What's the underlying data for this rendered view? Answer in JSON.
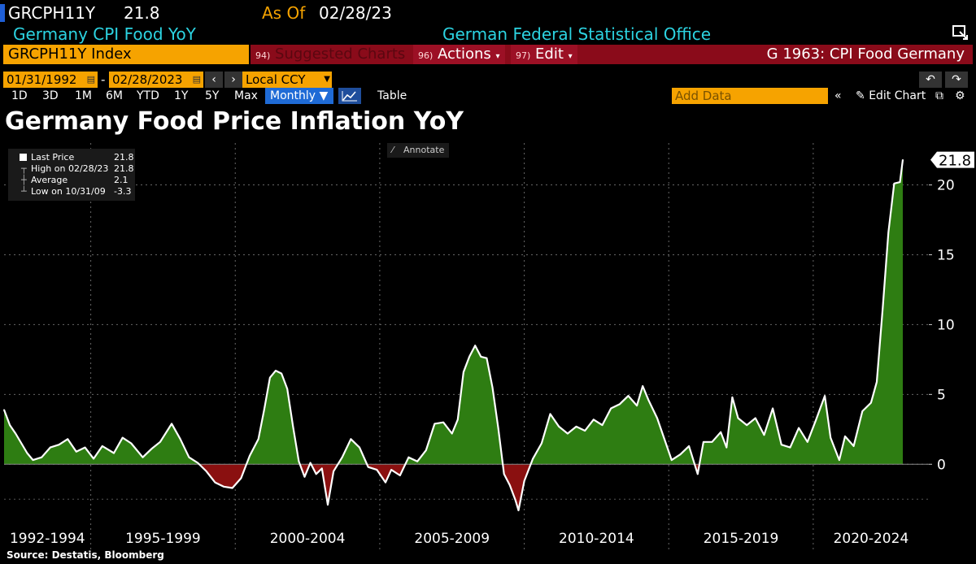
{
  "header": {
    "ticker": "GRCPH11Y",
    "last_value": "21.8",
    "as_of_label": "As Of",
    "as_of_date": "02/28/23",
    "description": "Germany CPI Food YoY",
    "source": "German Federal Statistical Office"
  },
  "toolbar": {
    "security": "GRCPH11Y Index",
    "suggested_num": "94)",
    "suggested_label": "Suggested Charts",
    "actions_num": "96)",
    "actions_label": "Actions",
    "edit_num": "97)",
    "edit_label": "Edit",
    "chart_name": "G 1963: CPI Food Germany",
    "start_date": "01/31/1992",
    "end_date": "02/28/2023",
    "date_sep": "-",
    "currency": "Local CCY",
    "periods": [
      "1D",
      "3D",
      "1M",
      "6M",
      "YTD",
      "1Y",
      "5Y",
      "Max"
    ],
    "frequency": "Monthly",
    "table_label": "Table",
    "add_data_placeholder": "Add Data",
    "edit_chart_label": "Edit Chart"
  },
  "legend": {
    "last_price_label": "Last Price",
    "last_price_value": "21.8",
    "high_label": "High on 02/28/23",
    "high_value": "21.8",
    "average_label": "Average",
    "average_value": "2.1",
    "low_label": "Low on 10/31/09",
    "low_value": "-3.3",
    "annotate_label": "Annotate"
  },
  "colors": {
    "positive_fill": "#2e7d12",
    "negative_fill": "#8a1010",
    "line": "#ffffff",
    "accent_orange": "#f6a300",
    "accent_cyan": "#2cd3e1"
  },
  "footer": {
    "source": "Source: Destatis, Bloomberg"
  },
  "chart_data": {
    "type": "area",
    "title": "Germany Food Price Inflation YoY",
    "xlabel": "",
    "ylabel": "",
    "ylim": [
      -4,
      23
    ],
    "yticks": [
      0,
      5,
      10,
      15,
      20
    ],
    "last_value_label": "21.8",
    "x_category_labels": [
      "1992-1994",
      "1995-1999",
      "2000-2004",
      "2005-2009",
      "2010-2014",
      "2015-2019",
      "2020-2024"
    ],
    "x_category_spans": [
      [
        1992,
        1995
      ],
      [
        1995,
        2000
      ],
      [
        2000,
        2005
      ],
      [
        2005,
        2010
      ],
      [
        2010,
        2015
      ],
      [
        2015,
        2020
      ],
      [
        2020,
        2024
      ]
    ],
    "xlim": [
      1992,
      2024
    ],
    "series": [
      {
        "name": "GRCPH11Y Index",
        "points": [
          [
            1992.0,
            3.9
          ],
          [
            1992.2,
            2.8
          ],
          [
            1992.4,
            2.2
          ],
          [
            1992.6,
            1.5
          ],
          [
            1992.8,
            0.8
          ],
          [
            1993.0,
            0.3
          ],
          [
            1993.3,
            0.5
          ],
          [
            1993.6,
            1.2
          ],
          [
            1993.9,
            1.4
          ],
          [
            1994.2,
            1.8
          ],
          [
            1994.5,
            0.9
          ],
          [
            1994.8,
            1.2
          ],
          [
            1995.1,
            0.4
          ],
          [
            1995.4,
            1.3
          ],
          [
            1995.8,
            0.8
          ],
          [
            1996.1,
            1.9
          ],
          [
            1996.4,
            1.5
          ],
          [
            1996.8,
            0.5
          ],
          [
            1997.1,
            1.1
          ],
          [
            1997.4,
            1.6
          ],
          [
            1997.8,
            2.9
          ],
          [
            1998.1,
            1.8
          ],
          [
            1998.4,
            0.5
          ],
          [
            1998.7,
            0.1
          ],
          [
            1999.0,
            -0.5
          ],
          [
            1999.3,
            -1.3
          ],
          [
            1999.6,
            -1.6
          ],
          [
            1999.9,
            -1.7
          ],
          [
            2000.2,
            -1.0
          ],
          [
            2000.5,
            0.6
          ],
          [
            2000.8,
            1.8
          ],
          [
            2001.0,
            3.9
          ],
          [
            2001.2,
            6.2
          ],
          [
            2001.4,
            6.7
          ],
          [
            2001.6,
            6.5
          ],
          [
            2001.8,
            5.4
          ],
          [
            2002.0,
            2.7
          ],
          [
            2002.2,
            0.2
          ],
          [
            2002.4,
            -0.9
          ],
          [
            2002.6,
            0.1
          ],
          [
            2002.8,
            -0.7
          ],
          [
            2003.0,
            -0.3
          ],
          [
            2003.2,
            -2.9
          ],
          [
            2003.4,
            -0.5
          ],
          [
            2003.7,
            0.5
          ],
          [
            2004.0,
            1.8
          ],
          [
            2004.3,
            1.2
          ],
          [
            2004.6,
            -0.2
          ],
          [
            2004.9,
            -0.4
          ],
          [
            2005.2,
            -1.3
          ],
          [
            2005.4,
            -0.4
          ],
          [
            2005.7,
            -0.8
          ],
          [
            2006.0,
            0.5
          ],
          [
            2006.3,
            0.2
          ],
          [
            2006.6,
            1.0
          ],
          [
            2006.9,
            2.9
          ],
          [
            2007.2,
            3.0
          ],
          [
            2007.5,
            2.2
          ],
          [
            2007.7,
            3.2
          ],
          [
            2007.9,
            6.6
          ],
          [
            2008.1,
            7.7
          ],
          [
            2008.3,
            8.5
          ],
          [
            2008.5,
            7.7
          ],
          [
            2008.7,
            7.6
          ],
          [
            2008.9,
            5.5
          ],
          [
            2009.1,
            2.6
          ],
          [
            2009.3,
            -0.7
          ],
          [
            2009.5,
            -1.5
          ],
          [
            2009.7,
            -2.6
          ],
          [
            2009.8,
            -3.3
          ],
          [
            2010.0,
            -1.2
          ],
          [
            2010.3,
            0.4
          ],
          [
            2010.6,
            1.5
          ],
          [
            2010.9,
            3.6
          ],
          [
            2011.2,
            2.7
          ],
          [
            2011.5,
            2.2
          ],
          [
            2011.8,
            2.7
          ],
          [
            2012.1,
            2.4
          ],
          [
            2012.4,
            3.2
          ],
          [
            2012.7,
            2.8
          ],
          [
            2013.0,
            4.0
          ],
          [
            2013.3,
            4.3
          ],
          [
            2013.6,
            4.9
          ],
          [
            2013.9,
            4.2
          ],
          [
            2014.1,
            5.6
          ],
          [
            2014.3,
            4.6
          ],
          [
            2014.6,
            3.3
          ],
          [
            2014.9,
            1.5
          ],
          [
            2015.1,
            0.3
          ],
          [
            2015.4,
            0.7
          ],
          [
            2015.7,
            1.3
          ],
          [
            2016.0,
            -0.7
          ],
          [
            2016.2,
            1.6
          ],
          [
            2016.5,
            1.6
          ],
          [
            2016.8,
            2.3
          ],
          [
            2017.0,
            1.2
          ],
          [
            2017.2,
            4.8
          ],
          [
            2017.4,
            3.3
          ],
          [
            2017.7,
            2.8
          ],
          [
            2018.0,
            3.3
          ],
          [
            2018.3,
            2.1
          ],
          [
            2018.6,
            4.0
          ],
          [
            2018.9,
            1.4
          ],
          [
            2019.2,
            1.2
          ],
          [
            2019.5,
            2.6
          ],
          [
            2019.8,
            1.6
          ],
          [
            2020.1,
            3.2
          ],
          [
            2020.4,
            4.9
          ],
          [
            2020.6,
            1.9
          ],
          [
            2020.9,
            0.3
          ],
          [
            2021.1,
            2.0
          ],
          [
            2021.4,
            1.3
          ],
          [
            2021.7,
            3.8
          ],
          [
            2022.0,
            4.4
          ],
          [
            2022.2,
            5.9
          ],
          [
            2022.4,
            11.1
          ],
          [
            2022.6,
            16.6
          ],
          [
            2022.8,
            20.1
          ],
          [
            2023.0,
            20.2
          ],
          [
            2023.1,
            21.8
          ]
        ]
      }
    ]
  }
}
